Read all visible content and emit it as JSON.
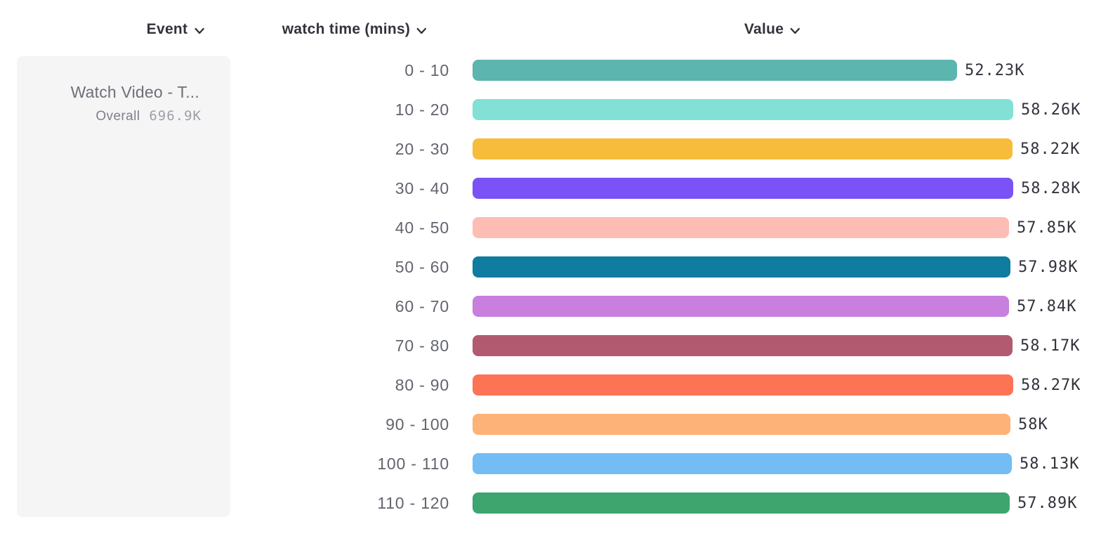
{
  "header": {
    "columns": [
      {
        "label": "Event",
        "icon": "chevron-down-icon"
      },
      {
        "label": "watch time (mins)",
        "icon": "chevron-down-icon"
      },
      {
        "label": "Value",
        "icon": "chevron-down-icon"
      }
    ]
  },
  "event_card": {
    "title": "Watch Video - T...",
    "overall_label": "Overall",
    "overall_value": "696.9K"
  },
  "chart_data": {
    "type": "bar",
    "orientation": "horizontal",
    "title": "",
    "xlabel": "Value",
    "ylabel": "watch time (mins)",
    "xlim": [
      0,
      58280
    ],
    "grid": false,
    "legend_position": "none",
    "categories": [
      "0 - 10",
      "10 - 20",
      "20 - 30",
      "30 - 40",
      "40 - 50",
      "50 - 60",
      "60 - 70",
      "70 - 80",
      "80 - 90",
      "90 - 100",
      "100 - 110",
      "110 - 120"
    ],
    "values": [
      52230,
      58260,
      58220,
      58280,
      57850,
      57980,
      57840,
      58170,
      58270,
      58000,
      58130,
      57890
    ],
    "value_labels": [
      "52.23K",
      "58.26K",
      "58.22K",
      "58.28K",
      "57.85K",
      "57.98K",
      "57.84K",
      "58.17K",
      "58.27K",
      "58K",
      "58.13K",
      "57.89K"
    ],
    "bar_colors": [
      "#5CB5AE",
      "#82E0D5",
      "#F7BC3C",
      "#7A52F5",
      "#FDBDB4",
      "#107C9F",
      "#C87FDE",
      "#B25A70",
      "#FD7355",
      "#FDB377",
      "#74BDF4",
      "#3EA56E"
    ]
  },
  "colors": {
    "header_text": "#32333C",
    "bucket_label": "#62646E",
    "value_label": "#32333C",
    "card_background": "#F5F5F6",
    "card_title": "#6E6F78"
  }
}
